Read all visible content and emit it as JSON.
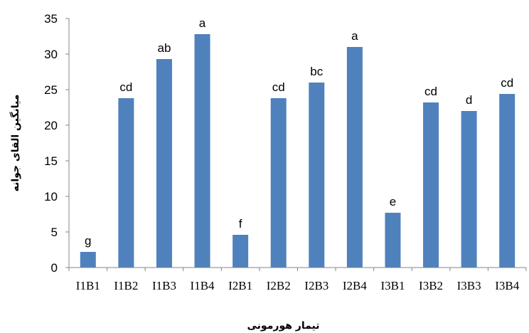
{
  "chart_data": {
    "type": "bar",
    "xlabel": "تیمار هورمونی",
    "ylabel": "میانگین القای جوانه",
    "ylim": [
      0,
      35
    ],
    "yticks": [
      0,
      5,
      10,
      15,
      20,
      25,
      30,
      35
    ],
    "grid": false,
    "bar_color": "#4f81bd",
    "categories": [
      "I1B1",
      "I1B2",
      "I1B3",
      "I1B4",
      "I2B1",
      "I2B2",
      "I2B3",
      "I2B4",
      "I3B1",
      "I3B2",
      "I3B3",
      "I3B4"
    ],
    "values": [
      2.2,
      23.8,
      29.3,
      32.8,
      4.6,
      23.8,
      26.0,
      31.0,
      7.7,
      23.2,
      22.0,
      24.4
    ],
    "labels": [
      "g",
      "cd",
      "ab",
      "a",
      "f",
      "cd",
      "bc",
      "a",
      "e",
      "cd",
      "d",
      "cd"
    ]
  }
}
